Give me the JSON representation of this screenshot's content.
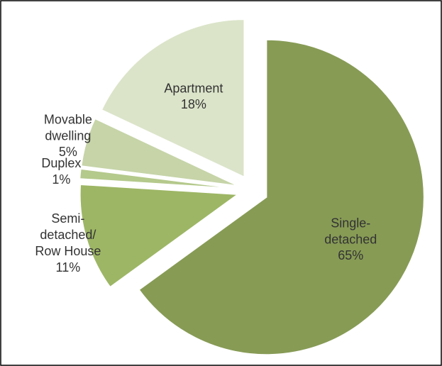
{
  "chart_data": {
    "type": "pie",
    "categories": [
      "Single-detached",
      "Semi-detached/Row House",
      "Duplex",
      "Movable dwelling",
      "Apartment"
    ],
    "values": [
      65,
      11,
      1,
      5,
      18
    ],
    "value_labels": [
      "65%",
      "11%",
      "1%",
      "5%",
      "18%"
    ],
    "colors": [
      "#879b55",
      "#9db665",
      "#b4c98c",
      "#c6d4a8",
      "#dbe4c9"
    ]
  }
}
